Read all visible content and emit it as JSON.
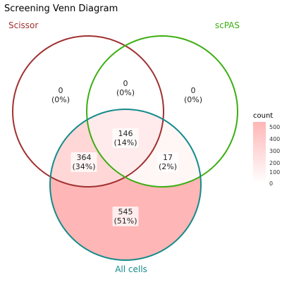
{
  "title": "Screening Venn Diagram",
  "sets": [
    {
      "name": "Scissor",
      "color": "#a03030"
    },
    {
      "name": "scPAS",
      "color": "#3cae12"
    },
    {
      "name": "All cells",
      "color": "#138a8a"
    }
  ],
  "regions": {
    "scissor_only": {
      "count": "0",
      "pct": "(0%)"
    },
    "scissor_scpas": {
      "count": "0",
      "pct": "(0%)"
    },
    "scpas_only": {
      "count": "0",
      "pct": "(0%)"
    },
    "all_three": {
      "count": "146",
      "pct": "(14%)"
    },
    "scissor_allcells": {
      "count": "364",
      "pct": "(34%)"
    },
    "scpas_allcells": {
      "count": "17",
      "pct": "(2%)"
    },
    "allcells_only": {
      "count": "545",
      "pct": "(51%)"
    }
  },
  "legend": {
    "title": "count",
    "ticks": [
      "500",
      "400",
      "300",
      "200",
      "100",
      "0"
    ],
    "color_low": "#ffffff",
    "color_high": "#ffb6b6"
  }
}
